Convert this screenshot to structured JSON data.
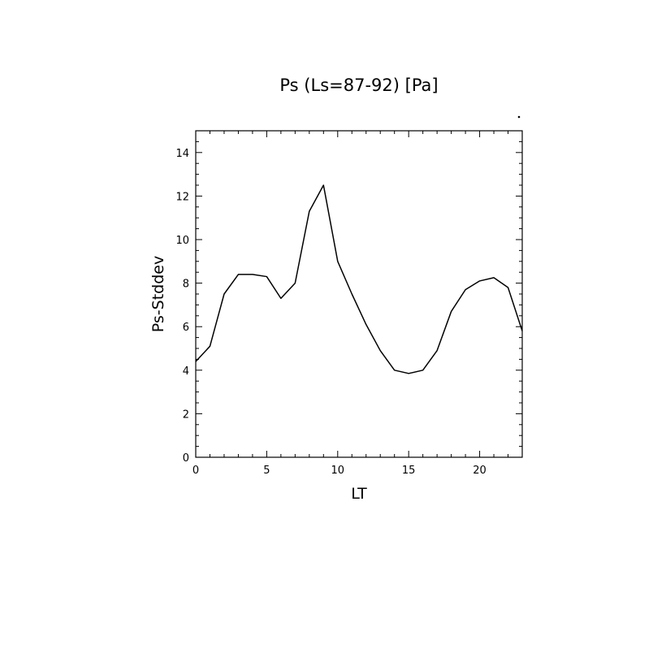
{
  "chart_data": {
    "type": "line",
    "title": "Ps (Ls=87-92) [Pa]",
    "xlabel": "LT",
    "ylabel": "Ps-Stddev",
    "xlim": [
      0,
      23
    ],
    "ylim": [
      0,
      15
    ],
    "xticks": [
      0,
      5,
      10,
      15,
      20
    ],
    "yticks": [
      0,
      2,
      4,
      6,
      8,
      10,
      12,
      14
    ],
    "x_minor_step": 1,
    "y_minor_step": 0.5,
    "grid": false,
    "series": [
      {
        "x": [
          0,
          1,
          2,
          3,
          4,
          5,
          6,
          7,
          8,
          9,
          10,
          11,
          12,
          13,
          14,
          15,
          16,
          17,
          18,
          19,
          20,
          21,
          22,
          23
        ],
        "y": [
          4.4,
          5.1,
          7.5,
          8.4,
          8.4,
          8.3,
          7.3,
          8.0,
          11.3,
          12.5,
          9.0,
          7.5,
          6.1,
          4.9,
          4.0,
          3.85,
          4.0,
          4.9,
          6.7,
          7.7,
          8.1,
          8.25,
          7.8,
          5.8
        ],
        "color": "#000000"
      }
    ]
  }
}
